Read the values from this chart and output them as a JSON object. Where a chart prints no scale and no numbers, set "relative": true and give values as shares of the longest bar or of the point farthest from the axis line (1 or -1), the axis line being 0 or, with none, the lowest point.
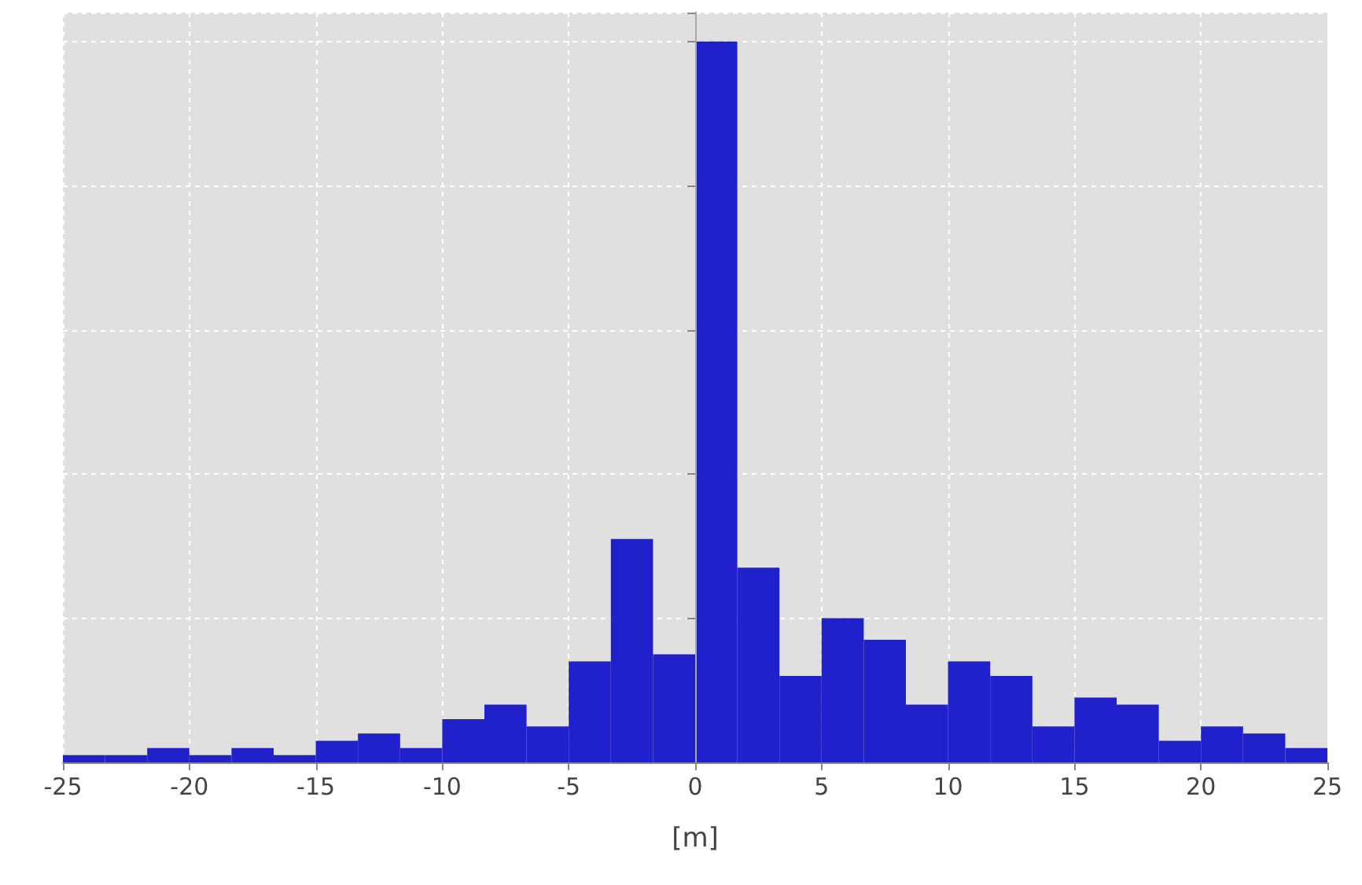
{
  "chart_data": {
    "type": "bar",
    "xlabel": "[m]",
    "relative": true,
    "x": [
      -24.167,
      -22.5,
      -20.833,
      -19.167,
      -17.5,
      -15.833,
      -14.167,
      -12.5,
      -10.833,
      -9.167,
      -7.5,
      -5.833,
      -4.167,
      -2.5,
      -0.833,
      0.833,
      2.5,
      4.167,
      5.833,
      7.5,
      9.167,
      10.833,
      12.5,
      14.167,
      15.833,
      17.5,
      19.167,
      20.833,
      22.5,
      24.167
    ],
    "values": [
      0.01,
      0.01,
      0.02,
      0.01,
      0.02,
      0.01,
      0.03,
      0.04,
      0.02,
      0.06,
      0.08,
      0.05,
      0.14,
      0.31,
      0.15,
      1,
      0.27,
      0.12,
      0.2,
      0.17,
      0.08,
      0.14,
      0.12,
      0.05,
      0.09,
      0.08,
      0.03,
      0.05,
      0.04,
      0.02
    ],
    "color": "#2020cc",
    "xlim": [
      -25,
      25
    ],
    "xticks": [
      -25,
      -20,
      -15,
      -10,
      -5,
      0,
      5,
      10,
      15,
      20,
      25
    ],
    "ref_lines": [
      {
        "axis": "x",
        "value": 0,
        "color": "#a8a8a8"
      }
    ],
    "grid": true,
    "tick_labels": "x"
  }
}
